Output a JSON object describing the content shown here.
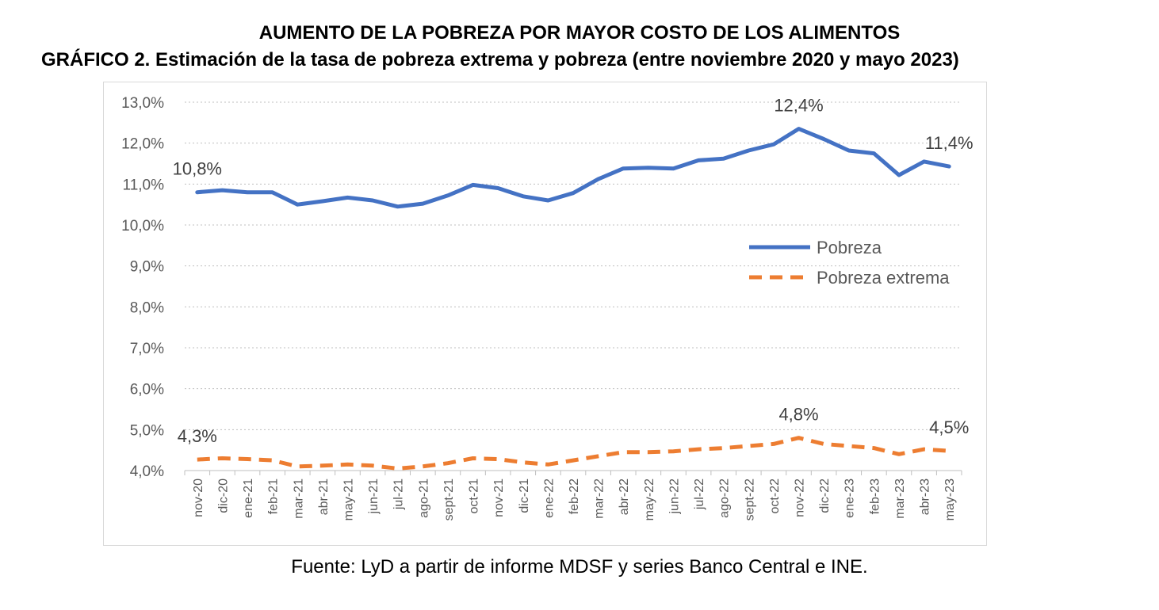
{
  "title": "AUMENTO DE LA POBREZA POR MAYOR COSTO DE LOS ALIMENTOS",
  "subtitle": "GRÁFICO 2. Estimación de la tasa de pobreza extrema y pobreza (entre noviembre 2020 y mayo 2023)",
  "source": "Fuente: LyD a partir de informe MDSF y series Banco Central e INE.",
  "chart_data": {
    "type": "line",
    "categories": [
      "nov-20",
      "dic-20",
      "ene-21",
      "feb-21",
      "mar-21",
      "abr-21",
      "may-21",
      "jun-21",
      "jul-21",
      "ago-21",
      "sept-21",
      "oct-21",
      "nov-21",
      "dic-21",
      "ene-22",
      "feb-22",
      "mar-22",
      "abr-22",
      "may-22",
      "jun-22",
      "jul-22",
      "ago-22",
      "sept-22",
      "oct-22",
      "nov-22",
      "dic-22",
      "ene-23",
      "feb-23",
      "mar-23",
      "abr-23",
      "may-23"
    ],
    "ylim": [
      4.0,
      13.0
    ],
    "yticks": [
      "4,0%",
      "5,0%",
      "6,0%",
      "7,0%",
      "8,0%",
      "9,0%",
      "10,0%",
      "11,0%",
      "12,0%",
      "13,0%"
    ],
    "grid": true,
    "legend_position": "right",
    "series": [
      {
        "name": "Pobreza",
        "color": "#4472C4",
        "style": "solid",
        "values": [
          10.8,
          10.85,
          10.8,
          10.8,
          10.5,
          10.58,
          10.67,
          10.6,
          10.45,
          10.52,
          10.72,
          10.98,
          10.9,
          10.7,
          10.6,
          10.78,
          11.12,
          11.38,
          11.4,
          11.38,
          11.58,
          11.62,
          11.82,
          11.97,
          12.35,
          12.1,
          11.82,
          11.75,
          11.22,
          11.55,
          11.43
        ]
      },
      {
        "name": "Pobreza extrema",
        "color": "#ED7D31",
        "style": "dashed",
        "values": [
          4.27,
          4.3,
          4.28,
          4.25,
          4.1,
          4.12,
          4.15,
          4.12,
          4.05,
          4.1,
          4.18,
          4.3,
          4.28,
          4.2,
          4.15,
          4.25,
          4.35,
          4.45,
          4.45,
          4.47,
          4.52,
          4.55,
          4.6,
          4.65,
          4.8,
          4.65,
          4.6,
          4.55,
          4.4,
          4.52,
          4.48
        ]
      }
    ],
    "data_labels": [
      {
        "series": 0,
        "index": 0,
        "text": "10,8%"
      },
      {
        "series": 0,
        "index": 24,
        "text": "12,4%"
      },
      {
        "series": 0,
        "index": 30,
        "text": "11,4%"
      },
      {
        "series": 1,
        "index": 0,
        "text": "4,3%"
      },
      {
        "series": 1,
        "index": 24,
        "text": "4,8%"
      },
      {
        "series": 1,
        "index": 30,
        "text": "4,5%"
      }
    ]
  }
}
